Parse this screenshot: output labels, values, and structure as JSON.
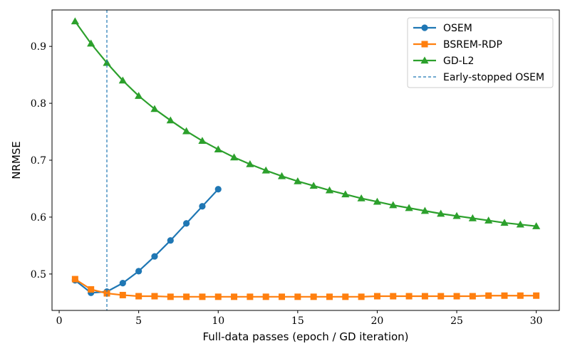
{
  "chart_data": {
    "type": "line",
    "title": "",
    "xlabel": "Full-data passes (epoch / GD iteration)",
    "ylabel": "NRMSE",
    "xlim": [
      -0.45,
      31.45
    ],
    "ylim": [
      0.436,
      0.964
    ],
    "xticks": [
      0,
      5,
      10,
      15,
      20,
      25,
      30
    ],
    "yticks": [
      0.5,
      0.6,
      0.7,
      0.8,
      0.9
    ],
    "xtick_labels": [
      "0",
      "5",
      "10",
      "15",
      "20",
      "25",
      "30"
    ],
    "ytick_labels": [
      "0.5",
      "0.6",
      "0.7",
      "0.8",
      "0.9"
    ],
    "grid": false,
    "legend_position": "top-right",
    "series": [
      {
        "name": "OSEM",
        "color": "#1f77b4",
        "marker": "circle",
        "x": [
          1,
          2,
          3,
          4,
          5,
          6,
          7,
          8,
          9,
          10
        ],
        "y": [
          0.489,
          0.467,
          0.469,
          0.484,
          0.505,
          0.531,
          0.559,
          0.589,
          0.619,
          0.649
        ]
      },
      {
        "name": "BSREM-RDP",
        "color": "#ff7f0e",
        "marker": "square",
        "x": [
          1,
          2,
          3,
          4,
          5,
          6,
          7,
          8,
          9,
          10,
          11,
          12,
          13,
          14,
          15,
          16,
          17,
          18,
          19,
          20,
          21,
          22,
          23,
          24,
          25,
          26,
          27,
          28,
          29,
          30
        ],
        "y": [
          0.491,
          0.473,
          0.466,
          0.463,
          0.461,
          0.461,
          0.46,
          0.46,
          0.46,
          0.46,
          0.46,
          0.46,
          0.46,
          0.46,
          0.46,
          0.46,
          0.46,
          0.46,
          0.46,
          0.461,
          0.461,
          0.461,
          0.461,
          0.461,
          0.461,
          0.461,
          0.462,
          0.462,
          0.462,
          0.462
        ]
      },
      {
        "name": "GD-L2",
        "color": "#2ca02c",
        "marker": "triangle",
        "x": [
          1,
          2,
          3,
          4,
          5,
          6,
          7,
          8,
          9,
          10,
          11,
          12,
          13,
          14,
          15,
          16,
          17,
          18,
          19,
          20,
          21,
          22,
          23,
          24,
          25,
          26,
          27,
          28,
          29,
          30
        ],
        "y": [
          0.944,
          0.905,
          0.871,
          0.84,
          0.813,
          0.79,
          0.77,
          0.751,
          0.734,
          0.719,
          0.705,
          0.693,
          0.682,
          0.672,
          0.663,
          0.655,
          0.647,
          0.64,
          0.633,
          0.627,
          0.621,
          0.616,
          0.611,
          0.606,
          0.602,
          0.598,
          0.594,
          0.59,
          0.587,
          0.584
        ]
      }
    ],
    "annotations": [
      {
        "type": "vline",
        "x": 3,
        "name": "Early-stopped OSEM",
        "color": "#1f77b4",
        "style": "dashed"
      }
    ]
  }
}
